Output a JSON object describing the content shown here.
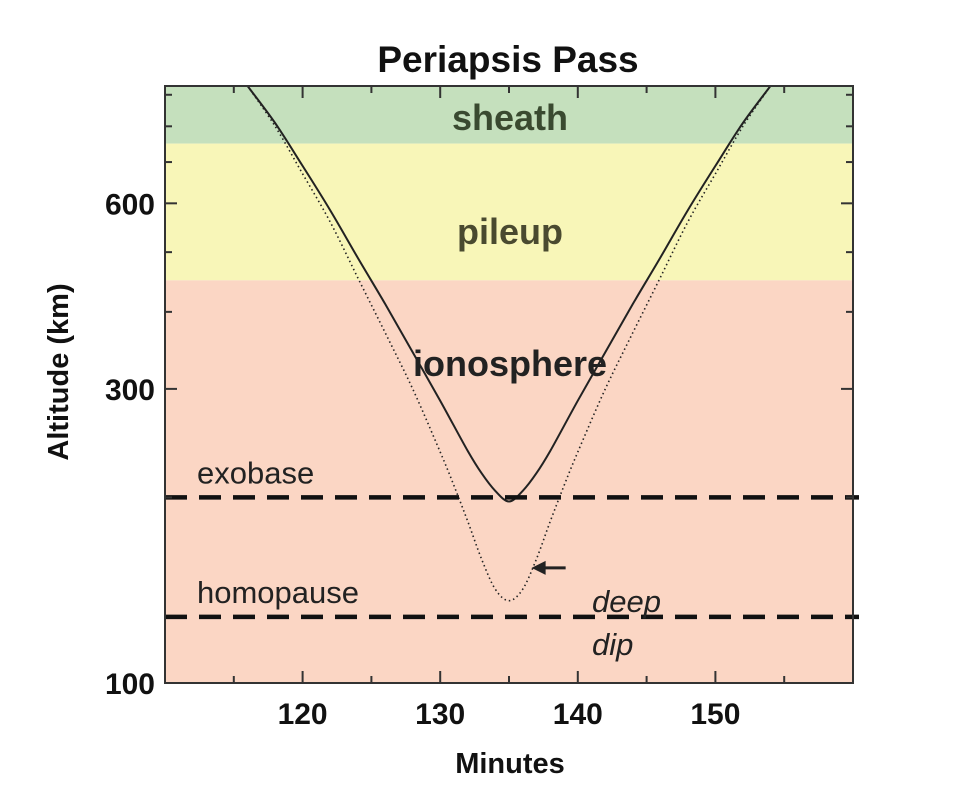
{
  "chart_data": {
    "type": "line",
    "title": "Periapsis Pass",
    "xlabel": "Minutes",
    "ylabel": "Altitude (km)",
    "xlim": [
      110,
      160
    ],
    "ylim": [
      100,
      930
    ],
    "y_scale": "log",
    "x_ticks": [
      120,
      130,
      140,
      150
    ],
    "y_ticks": [
      100,
      300,
      600
    ],
    "regions": [
      {
        "label": "sheath",
        "from": 750,
        "to": 930,
        "color": "#c5e0bd",
        "label_color": "#3a4a30"
      },
      {
        "label": "pileup",
        "from": 450,
        "to": 750,
        "color": "#f8f6b8",
        "label_color": "#4a4a30"
      },
      {
        "label": "ionosphere",
        "from": 100,
        "to": 450,
        "color": "#fbd6c4",
        "label_color": "#222222"
      }
    ],
    "reference_lines": [
      {
        "label": "exobase",
        "y": 200
      },
      {
        "label": "homopause",
        "y": 128
      }
    ],
    "series": [
      {
        "style": "solid",
        "x": [
          116,
          118,
          120,
          122,
          124,
          126,
          128,
          130,
          132,
          133,
          134,
          135,
          136,
          137,
          138,
          140,
          142,
          144,
          146,
          148,
          150,
          152,
          154
        ],
        "y": [
          930,
          810,
          690,
          585,
          490,
          412,
          344,
          287,
          238,
          219,
          205,
          197,
          205,
          219,
          238,
          287,
          344,
          412,
          490,
          585,
          690,
          810,
          930
        ]
      },
      {
        "name": "deep dip",
        "style": "dotted",
        "x": [
          116,
          118,
          120,
          122,
          124,
          126,
          128,
          130,
          131,
          132,
          133,
          134,
          135,
          136,
          137,
          138,
          139,
          140,
          142,
          144,
          146,
          148,
          150,
          152,
          154
        ],
        "y": [
          930,
          800,
          670,
          560,
          455,
          370,
          300,
          237,
          209,
          183,
          159,
          142,
          136,
          142,
          159,
          183,
          209,
          237,
          300,
          370,
          455,
          560,
          670,
          800,
          930
        ]
      }
    ],
    "annotations": [
      {
        "text_1": "deep",
        "text_2": "dip",
        "points_to_x": 136.5,
        "points_to_y": 152
      }
    ],
    "grid": false
  }
}
